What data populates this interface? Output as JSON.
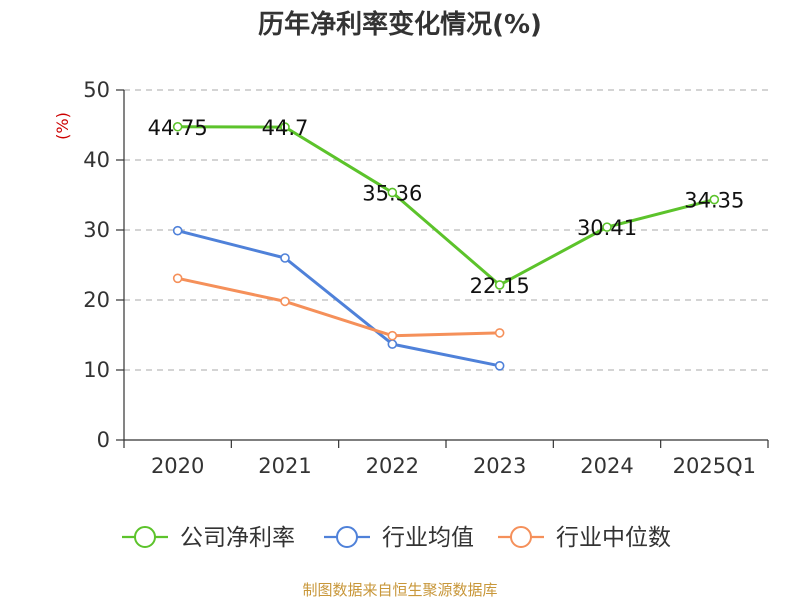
{
  "chart_data": {
    "type": "line",
    "title": "历年净利率变化情况(%)",
    "ylabel": "(%)",
    "xlabel": "",
    "categories": [
      "2020",
      "2021",
      "2022",
      "2023",
      "2024",
      "2025Q1"
    ],
    "ylim": [
      0,
      50
    ],
    "yticks": [
      0,
      10,
      20,
      30,
      40,
      50
    ],
    "grid": true,
    "legend_position": "bottom",
    "series": [
      {
        "name": "公司净利率",
        "color": "#5cc32b",
        "values": [
          44.75,
          44.7,
          35.36,
          22.15,
          30.41,
          34.35
        ],
        "labels": [
          "44.75",
          "44.7",
          "35.36",
          "22.15",
          "30.41",
          "34.35"
        ],
        "show_labels": true
      },
      {
        "name": "行业均值",
        "color": "#4f81d9",
        "values": [
          29.9,
          26.0,
          13.7,
          10.6,
          null,
          null
        ],
        "show_labels": false
      },
      {
        "name": "行业中位数",
        "color": "#f5905a",
        "values": [
          23.1,
          19.8,
          14.9,
          15.3,
          null,
          null
        ],
        "show_labels": false
      }
    ],
    "source": "制图数据来自恒生聚源数据库"
  },
  "colors": {
    "axis": "#333333",
    "grid": "#bbbbbb",
    "unit": "#cc0000",
    "source": "#c8973a"
  }
}
